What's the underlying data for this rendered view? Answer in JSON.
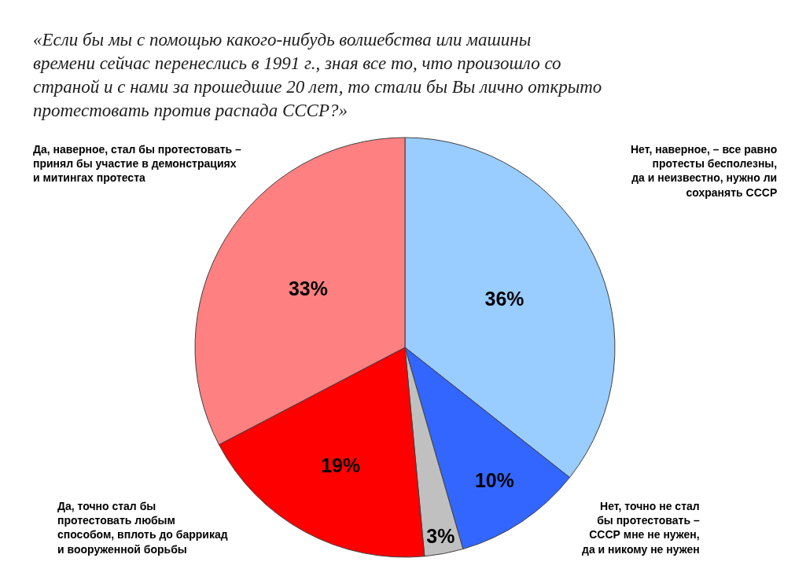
{
  "chart_data": {
    "type": "pie",
    "title": "«Если бы мы с помощью какого-нибудь волшебства или машины\nвремени сейчас перенеслись в 1991 г., зная все то, что произошло со\nстраной и с нами за прошедшие 20 лет, то стали бы Вы лично открыто\nпротестовать против распада СССР?»",
    "categories": [
      "Нет, наверное, – все равно\nпротесты бесполезны,\nда и неизвестно, нужно ли\nсохранять СССР",
      "Нет, точно не стал\nбы протестовать –\nСССР мне не нужен,\nда и никому не нужен",
      null,
      "Да, точно стал бы\nпротестовать любым\nспособом, вплоть до баррикад\nи вооруженной борьбы",
      "Да, наверное, стал бы протестовать –\nпринял бы участие в демонстрациях\nи митингах протеста"
    ],
    "values": [
      36,
      10,
      3,
      19,
      33
    ],
    "value_labels": [
      "36%",
      "10%",
      "3%",
      "19%",
      "33%"
    ],
    "colors": [
      "#99ccff",
      "#3366ff",
      "#c0c0c0",
      "#ff0000",
      "#ff8080"
    ],
    "legend": false
  }
}
